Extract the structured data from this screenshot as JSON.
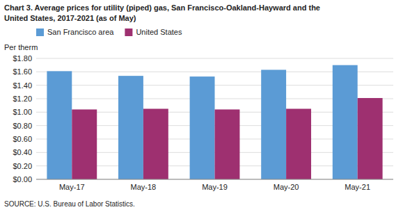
{
  "chart_data": {
    "type": "bar",
    "title": "Chart 3. Average prices for utility (piped) gas, San Francisco-Oakland-Hayward and the",
    "subtitle": "United States, 2017-2021  (as of May)",
    "ylabel": "Per therm",
    "source": "SOURCE: U.S. Bureau of Labor Statistics.",
    "categories": [
      "May-17",
      "May-18",
      "May-19",
      "May-20",
      "May-21"
    ],
    "series": [
      {
        "name": "San Francisco area",
        "color": "#5B9BD5",
        "values": [
          1.61,
          1.54,
          1.53,
          1.63,
          1.7
        ]
      },
      {
        "name": "United States",
        "color": "#9E3070",
        "values": [
          1.04,
          1.05,
          1.04,
          1.05,
          1.21
        ]
      }
    ],
    "ylim": [
      0.0,
      1.8
    ],
    "yticks": [
      {
        "value": 0.0,
        "label": "$0.00"
      },
      {
        "value": 0.2,
        "label": "$0.20"
      },
      {
        "value": 0.4,
        "label": "$0.40"
      },
      {
        "value": 0.6,
        "label": "$0.60"
      },
      {
        "value": 0.8,
        "label": "$0.80"
      },
      {
        "value": 1.0,
        "label": "$1.00"
      },
      {
        "value": 1.2,
        "label": "$1.20"
      },
      {
        "value": 1.4,
        "label": "$1.40"
      },
      {
        "value": 1.6,
        "label": "$1.60"
      },
      {
        "value": 1.8,
        "label": "$1.80"
      }
    ],
    "grid": true,
    "legend": "upper left"
  }
}
